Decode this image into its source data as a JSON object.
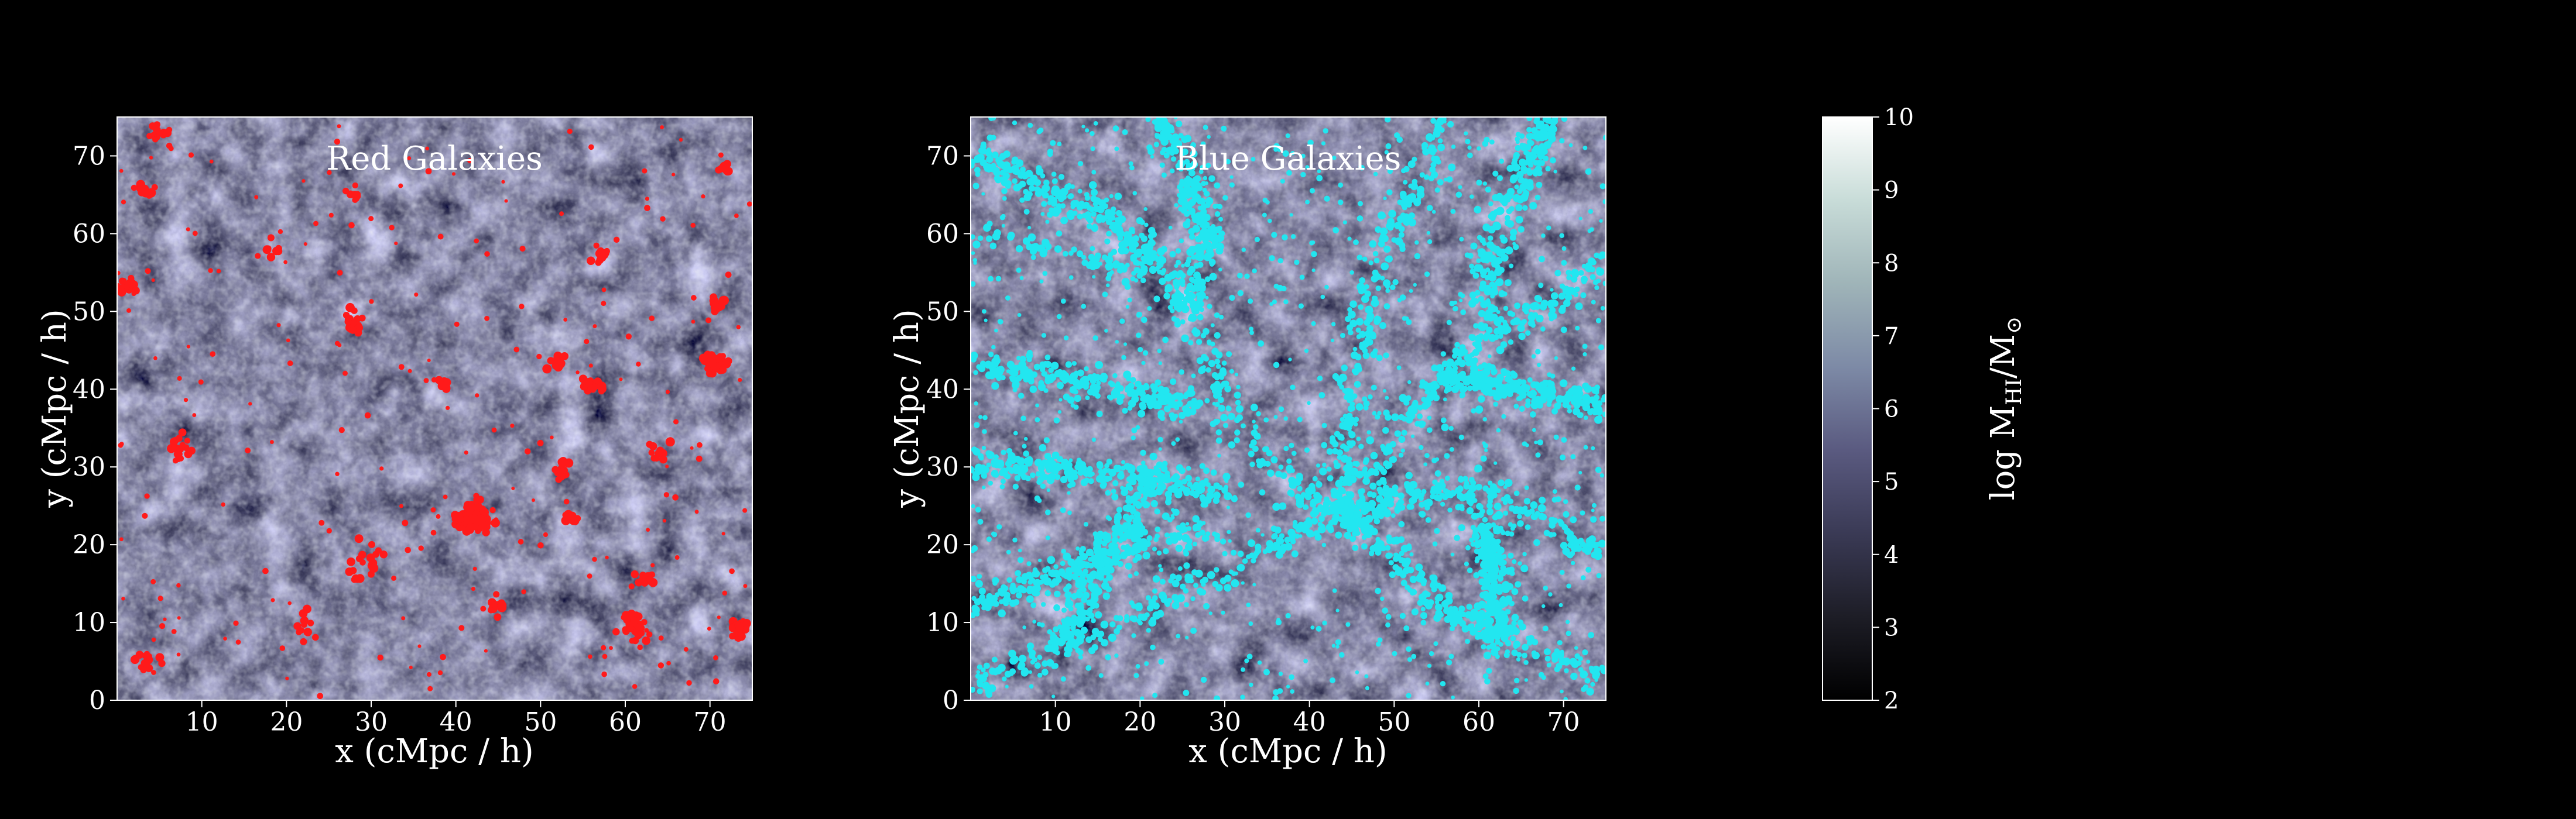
{
  "chart_data": [
    {
      "type": "scatter",
      "title": "Red Galaxies",
      "xlabel": "x (cMpc / h)",
      "ylabel": "y (cMpc / h)",
      "xlim": [
        0,
        75
      ],
      "ylim": [
        0,
        75
      ],
      "xticks": [
        10,
        20,
        30,
        40,
        50,
        60,
        70
      ],
      "yticks": [
        0,
        10,
        20,
        30,
        40,
        50,
        60,
        70
      ],
      "background": "HI mass density map (log scale, gray colormap)",
      "point_color": "#ff1a1a",
      "series": [
        {
          "clusters": [
            {
              "x": 42,
              "y": 23.5,
              "spread": 1.6,
              "count": 90
            },
            {
              "x": 70.5,
              "y": 43.5,
              "spread": 1.2,
              "count": 60
            },
            {
              "x": 73.5,
              "y": 9.5,
              "spread": 0.9,
              "count": 30
            },
            {
              "x": 61,
              "y": 9.5,
              "spread": 1.4,
              "count": 30
            },
            {
              "x": 56,
              "y": 40.5,
              "spread": 0.8,
              "count": 20
            },
            {
              "x": 52.5,
              "y": 29.5,
              "spread": 0.8,
              "count": 18
            },
            {
              "x": 1.5,
              "y": 53.5,
              "spread": 0.8,
              "count": 20
            },
            {
              "x": 3.5,
              "y": 65.5,
              "spread": 0.8,
              "count": 14
            },
            {
              "x": 71,
              "y": 51,
              "spread": 0.8,
              "count": 14
            },
            {
              "x": 62.5,
              "y": 15.5,
              "spread": 0.8,
              "count": 14
            },
            {
              "x": 28,
              "y": 48.5,
              "spread": 1.2,
              "count": 16
            },
            {
              "x": 7.5,
              "y": 32.5,
              "spread": 1.2,
              "count": 18
            },
            {
              "x": 57,
              "y": 57,
              "spread": 0.7,
              "count": 12
            },
            {
              "x": 5,
              "y": 72.5,
              "spread": 1.2,
              "count": 14
            },
            {
              "x": 71.5,
              "y": 68.5,
              "spread": 0.8,
              "count": 10
            },
            {
              "x": 52,
              "y": 43.5,
              "spread": 1.2,
              "count": 12
            },
            {
              "x": 38.5,
              "y": 40.5,
              "spread": 0.8,
              "count": 8
            },
            {
              "x": 22,
              "y": 10,
              "spread": 1.5,
              "count": 12
            },
            {
              "x": 29.5,
              "y": 17.5,
              "spread": 2,
              "count": 20
            },
            {
              "x": 45,
              "y": 12,
              "spread": 0.9,
              "count": 10
            },
            {
              "x": 53.5,
              "y": 23.5,
              "spread": 0.7,
              "count": 10
            },
            {
              "x": 3,
              "y": 5,
              "spread": 1.2,
              "count": 12
            },
            {
              "x": 28,
              "y": 65,
              "spread": 1,
              "count": 8
            },
            {
              "x": 18,
              "y": 58,
              "spread": 1.2,
              "count": 8
            },
            {
              "x": 64,
              "y": 32,
              "spread": 1.5,
              "count": 10
            }
          ],
          "field_points": 220
        }
      ]
    },
    {
      "type": "scatter",
      "title": "Blue Galaxies",
      "xlabel": "x (cMpc / h)",
      "ylabel": "y (cMpc / h)",
      "xlim": [
        0,
        75
      ],
      "ylim": [
        0,
        75
      ],
      "xticks": [
        10,
        20,
        30,
        40,
        50,
        60,
        70
      ],
      "yticks": [
        0,
        10,
        20,
        30,
        40,
        50,
        60,
        70
      ],
      "background": "HI mass density map (log scale, gray colormap)",
      "point_color": "#22e6f0",
      "series": [
        {
          "filaments": [
            [
              [
                0,
                60
              ],
              [
                12,
                57
              ],
              [
                22,
                56
              ],
              [
                26,
                50
              ],
              [
                30,
                38
              ],
              [
                38,
                27
              ],
              [
                44,
                24
              ]
            ],
            [
              [
                44,
                24
              ],
              [
                52,
                26
              ],
              [
                60,
                27
              ],
              [
                70,
                22
              ],
              [
                75,
                18
              ]
            ],
            [
              [
                44,
                24
              ],
              [
                36,
                20
              ],
              [
                28,
                16
              ],
              [
                20,
                11
              ],
              [
                10,
                6
              ],
              [
                0,
                2
              ]
            ],
            [
              [
                44,
                24
              ],
              [
                50,
                18
              ],
              [
                56,
                12
              ],
              [
                62,
                8
              ],
              [
                75,
                3
              ]
            ],
            [
              [
                44,
                24
              ],
              [
                50,
                34
              ],
              [
                56,
                42
              ],
              [
                62,
                48
              ],
              [
                68,
                50
              ],
              [
                75,
                56
              ]
            ],
            [
              [
                26,
                50
              ],
              [
                28,
                60
              ],
              [
                26,
                67
              ],
              [
                22,
                75
              ]
            ],
            [
              [
                0,
                43
              ],
              [
                8,
                42
              ],
              [
                18,
                40
              ],
              [
                26,
                38
              ]
            ],
            [
              [
                0,
                30
              ],
              [
                10,
                30
              ],
              [
                20,
                28
              ],
              [
                30,
                27
              ]
            ],
            [
              [
                44,
                24
              ],
              [
                44,
                34
              ],
              [
                46,
                46
              ],
              [
                48,
                56
              ],
              [
                52,
                65
              ],
              [
                56,
                75
              ]
            ],
            [
              [
                60,
                50
              ],
              [
                62,
                60
              ],
              [
                66,
                68
              ],
              [
                68,
                75
              ]
            ],
            [
              [
                0,
                70
              ],
              [
                8,
                66
              ],
              [
                16,
                62
              ],
              [
                22,
                56
              ]
            ],
            [
              [
                56,
                42
              ],
              [
                64,
                40
              ],
              [
                75,
                38
              ]
            ],
            [
              [
                10,
                6
              ],
              [
                14,
                14
              ],
              [
                18,
                22
              ],
              [
                22,
                30
              ]
            ],
            [
              [
                62,
                8
              ],
              [
                62,
                16
              ],
              [
                60,
                24
              ]
            ],
            [
              [
                0,
                12
              ],
              [
                10,
                16
              ],
              [
                18,
                20
              ],
              [
                28,
                22
              ]
            ]
          ],
          "points_per_filament": 240,
          "field_points": 900
        }
      ]
    }
  ],
  "colorbar": {
    "label_main": "log M",
    "label_sub": "HI",
    "label_tail": "/M",
    "label_sun": "⊙",
    "min": 2,
    "max": 10,
    "ticks": [
      "2",
      "3",
      "4",
      "5",
      "6",
      "7",
      "8",
      "9",
      "10"
    ],
    "colormap": [
      "#000000",
      "#1d1d26",
      "#3a3a55",
      "#5a5a80",
      "#7d8aa6",
      "#9fb4b8",
      "#c8dcd8",
      "#ffffff"
    ]
  }
}
